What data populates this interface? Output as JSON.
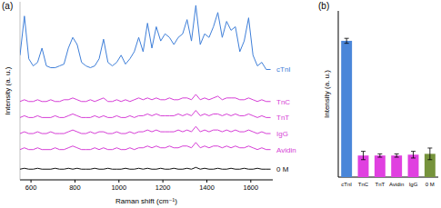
{
  "chart_data": [
    {
      "type": "line",
      "title": "(a)",
      "x_label": "Raman shift (cm⁻¹)",
      "y_label": "Intensity (a. u.)",
      "x": [
        550,
        570,
        590,
        610,
        630,
        650,
        670,
        690,
        710,
        730,
        750,
        770,
        790,
        810,
        830,
        850,
        870,
        890,
        910,
        930,
        950,
        970,
        990,
        1010,
        1030,
        1050,
        1070,
        1090,
        1110,
        1130,
        1150,
        1170,
        1190,
        1210,
        1230,
        1250,
        1270,
        1290,
        1310,
        1330,
        1350,
        1370,
        1390,
        1410,
        1430,
        1450,
        1470,
        1490,
        1510,
        1530,
        1550,
        1570,
        1590,
        1610,
        1630,
        1650,
        1670,
        1690
      ],
      "series": [
        {
          "name": "cTnI",
          "color": "#3f7fd9",
          "values": [
            70,
            92,
            68,
            64,
            66,
            74,
            64,
            63,
            63,
            64,
            65,
            74,
            80,
            76,
            66,
            64,
            63,
            64,
            68,
            79,
            66,
            64,
            66,
            70,
            65,
            68,
            72,
            80,
            72,
            88,
            74,
            86,
            78,
            82,
            80,
            76,
            80,
            82,
            90,
            78,
            98,
            76,
            82,
            80,
            86,
            94,
            80,
            89,
            84,
            86,
            72,
            78,
            91,
            70,
            64,
            66,
            62,
            62
          ]
        },
        {
          "name": "TnC",
          "color": "#d63fd6",
          "values": [
            44,
            45,
            44,
            44,
            45,
            44,
            44,
            45,
            44,
            44,
            45,
            45,
            46,
            45,
            44,
            44,
            45,
            44,
            45,
            46,
            44,
            44,
            45,
            44,
            45,
            44,
            45,
            46,
            45,
            46,
            45,
            46,
            45,
            45,
            46,
            45,
            45,
            46,
            46,
            45,
            48,
            45,
            46,
            45,
            46,
            47,
            45,
            46,
            46,
            46,
            45,
            45,
            46,
            45,
            44,
            45,
            44,
            44
          ]
        },
        {
          "name": "TnT",
          "color": "#d63fd6",
          "values": [
            35,
            36,
            35,
            35,
            36,
            35,
            35,
            35,
            36,
            35,
            35,
            36,
            37,
            36,
            35,
            35,
            35,
            36,
            35,
            36,
            35,
            35,
            36,
            35,
            35,
            36,
            35,
            36,
            36,
            37,
            36,
            37,
            36,
            36,
            36,
            36,
            37,
            36,
            37,
            36,
            39,
            36,
            37,
            36,
            37,
            37,
            36,
            37,
            36,
            37,
            36,
            36,
            37,
            36,
            35,
            36,
            35,
            35
          ]
        },
        {
          "name": "IgG",
          "color": "#d63fd6",
          "values": [
            26,
            27,
            26,
            26,
            27,
            26,
            26,
            27,
            26,
            26,
            26,
            27,
            28,
            27,
            26,
            26,
            27,
            26,
            27,
            27,
            26,
            26,
            27,
            26,
            26,
            27,
            26,
            27,
            27,
            28,
            27,
            28,
            27,
            27,
            27,
            27,
            28,
            27,
            28,
            27,
            30,
            27,
            28,
            27,
            28,
            28,
            27,
            28,
            27,
            28,
            27,
            27,
            28,
            27,
            26,
            27,
            26,
            26
          ]
        },
        {
          "name": "Avidin",
          "color": "#d63fd6",
          "values": [
            17,
            18,
            17,
            17,
            18,
            17,
            17,
            17,
            18,
            17,
            17,
            18,
            19,
            18,
            17,
            17,
            17,
            18,
            17,
            18,
            17,
            17,
            18,
            17,
            17,
            18,
            17,
            18,
            18,
            19,
            18,
            19,
            18,
            18,
            19,
            18,
            18,
            19,
            19,
            18,
            21,
            18,
            19,
            18,
            19,
            19,
            18,
            19,
            18,
            19,
            18,
            18,
            19,
            18,
            17,
            18,
            17,
            17
          ]
        },
        {
          "name": "0 M",
          "color": "#111111",
          "values": [
            6,
            6.5,
            6,
            6,
            6.5,
            6,
            6,
            6,
            6.5,
            6,
            6,
            6.5,
            6,
            6.5,
            6,
            6,
            6,
            6.5,
            6,
            6,
            6.5,
            6,
            6,
            6,
            6.5,
            6,
            6,
            6.5,
            6,
            6.5,
            6,
            6,
            6.5,
            6,
            6,
            6.5,
            6,
            6,
            6.5,
            6,
            7,
            6,
            6.5,
            6,
            6,
            6.5,
            6,
            6,
            6.5,
            6,
            6,
            6.5,
            6,
            6,
            6.5,
            6,
            6,
            6
          ]
        }
      ],
      "xlim": [
        550,
        1700
      ],
      "xticks": [
        600,
        800,
        1000,
        1200,
        1400,
        1600
      ],
      "ylim": [
        0,
        100
      ],
      "tick_labels": "x",
      "legend": "right"
    },
    {
      "type": "bar",
      "title": "(b)",
      "y_label": "Intensity (a. u.)",
      "categories": [
        "cTnI",
        "TnC",
        "TnT",
        "Avidin",
        "IgG",
        "0 M"
      ],
      "values": [
        82,
        13,
        13,
        13,
        13.5,
        14
      ],
      "errors": [
        1.5,
        2.5,
        1,
        1,
        2,
        3.5
      ],
      "colors": [
        "#4a86d9",
        "#e040e0",
        "#e040e0",
        "#e040e0",
        "#e040e0",
        "#76933c"
      ],
      "ylim": [
        0,
        100
      ],
      "tick_labels": "x"
    }
  ]
}
